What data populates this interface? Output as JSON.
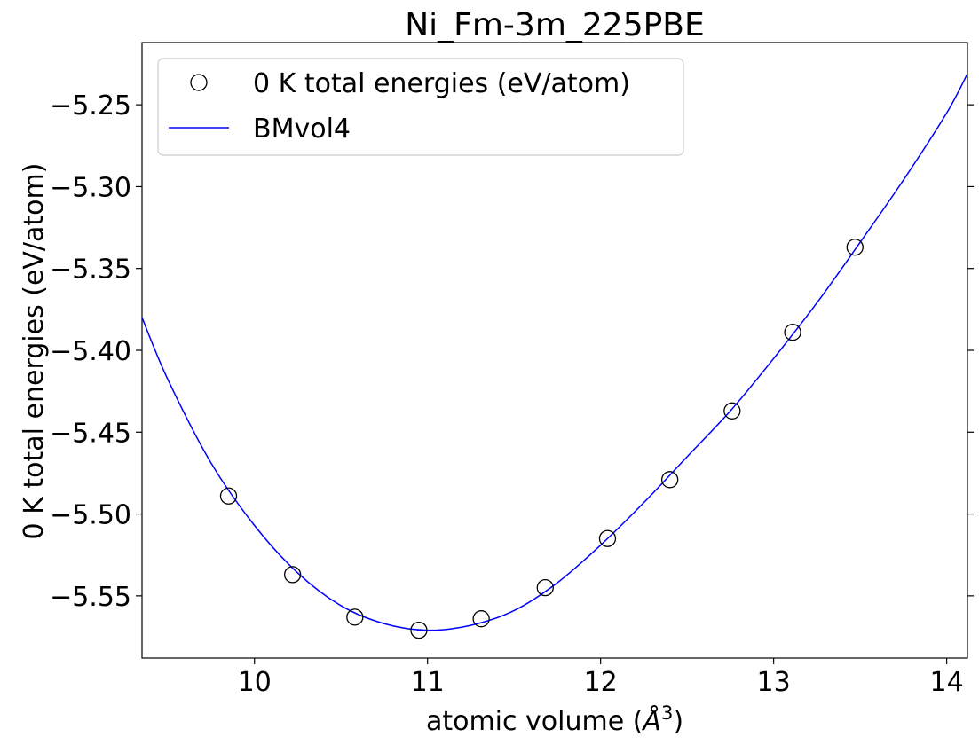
{
  "chart_data": {
    "type": "scatter",
    "title": "Ni_Fm-3m_225PBE",
    "xlabel_prefix": "atomic volume (",
    "xlabel_symbol": "Å",
    "xlabel_exponent": "3",
    "xlabel_suffix": ")",
    "ylabel": "0 K total energies (eV/atom)",
    "xlim": [
      9.35,
      14.12
    ],
    "ylim": [
      -5.588,
      -5.212
    ],
    "x_ticks": [
      10,
      11,
      12,
      13,
      14
    ],
    "x_tick_labels": [
      "10",
      "11",
      "12",
      "13",
      "14"
    ],
    "y_ticks": [
      -5.55,
      -5.5,
      -5.45,
      -5.4,
      -5.35,
      -5.3,
      -5.25
    ],
    "y_tick_labels": [
      "−5.55",
      "−5.50",
      "−5.45",
      "−5.40",
      "−5.35",
      "−5.30",
      "−5.25"
    ],
    "grid": false,
    "legend_position": "top-left",
    "series": [
      {
        "name": "0 K total energies (eV/atom)",
        "kind": "markers",
        "marker": "open-circle",
        "color": "#000000",
        "x": [
          9.85,
          10.22,
          10.58,
          10.95,
          11.31,
          11.68,
          12.04,
          12.4,
          12.76,
          13.11,
          13.47
        ],
        "y": [
          -5.489,
          -5.537,
          -5.563,
          -5.571,
          -5.564,
          -5.545,
          -5.515,
          -5.479,
          -5.437,
          -5.389,
          -5.337
        ]
      },
      {
        "name": "BMvol4",
        "kind": "line",
        "color": "#0000ff",
        "x": [
          9.35,
          9.5,
          9.75,
          10.0,
          10.25,
          10.5,
          10.75,
          11.0,
          11.25,
          11.5,
          11.75,
          12.0,
          12.25,
          12.5,
          12.75,
          13.0,
          13.25,
          13.5,
          13.75,
          14.0,
          14.12
        ],
        "y": [
          -5.38,
          -5.418,
          -5.469,
          -5.507,
          -5.536,
          -5.556,
          -5.567,
          -5.571,
          -5.568,
          -5.559,
          -5.542,
          -5.519,
          -5.493,
          -5.465,
          -5.437,
          -5.405,
          -5.371,
          -5.334,
          -5.296,
          -5.255,
          -5.231
        ]
      }
    ]
  }
}
